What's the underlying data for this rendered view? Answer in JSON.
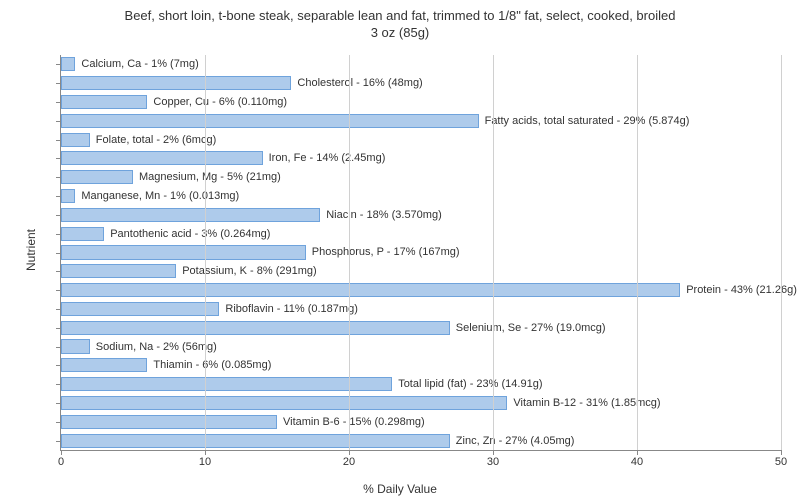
{
  "title_line1": "Beef, short loin, t-bone steak, separable lean and fat, trimmed to 1/8\" fat, select, cooked, broiled",
  "title_line2": "3 oz (85g)",
  "y_axis_label": "Nutrient",
  "x_axis_label": "% Daily Value",
  "chart": {
    "type": "bar-horizontal",
    "xlim": [
      0,
      50
    ],
    "xtick_step": 10,
    "bar_color": "#aecbeb",
    "bar_border_color": "#6fa3dc",
    "grid_color": "#d0d0d0",
    "background_color": "#ffffff",
    "title_fontsize": 13,
    "label_fontsize": 12,
    "tick_fontsize": 11,
    "bars": [
      {
        "label": "Calcium, Ca - 1% (7mg)",
        "value": 1
      },
      {
        "label": "Cholesterol - 16% (48mg)",
        "value": 16
      },
      {
        "label": "Copper, Cu - 6% (0.110mg)",
        "value": 6
      },
      {
        "label": "Fatty acids, total saturated - 29% (5.874g)",
        "value": 29
      },
      {
        "label": "Folate, total - 2% (6mcg)",
        "value": 2
      },
      {
        "label": "Iron, Fe - 14% (2.45mg)",
        "value": 14
      },
      {
        "label": "Magnesium, Mg - 5% (21mg)",
        "value": 5
      },
      {
        "label": "Manganese, Mn - 1% (0.013mg)",
        "value": 1
      },
      {
        "label": "Niacin - 18% (3.570mg)",
        "value": 18
      },
      {
        "label": "Pantothenic acid - 3% (0.264mg)",
        "value": 3
      },
      {
        "label": "Phosphorus, P - 17% (167mg)",
        "value": 17
      },
      {
        "label": "Potassium, K - 8% (291mg)",
        "value": 8
      },
      {
        "label": "Protein - 43% (21.26g)",
        "value": 43
      },
      {
        "label": "Riboflavin - 11% (0.187mg)",
        "value": 11
      },
      {
        "label": "Selenium, Se - 27% (19.0mcg)",
        "value": 27
      },
      {
        "label": "Sodium, Na - 2% (56mg)",
        "value": 2
      },
      {
        "label": "Thiamin - 6% (0.085mg)",
        "value": 6
      },
      {
        "label": "Total lipid (fat) - 23% (14.91g)",
        "value": 23
      },
      {
        "label": "Vitamin B-12 - 31% (1.85mcg)",
        "value": 31
      },
      {
        "label": "Vitamin B-6 - 15% (0.298mg)",
        "value": 15
      },
      {
        "label": "Zinc, Zn - 27% (4.05mg)",
        "value": 27
      }
    ]
  }
}
